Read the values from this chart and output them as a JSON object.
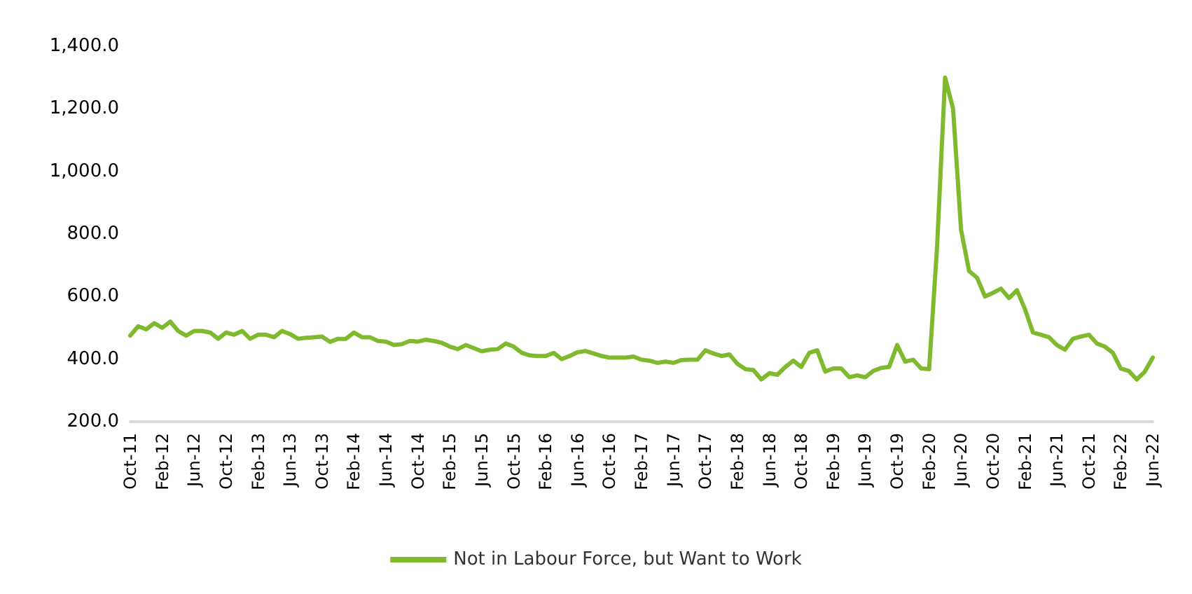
{
  "chart_data": {
    "type": "line",
    "categories": [
      "Oct-11",
      null,
      null,
      null,
      "Feb-12",
      null,
      null,
      null,
      "Jun-12",
      null,
      null,
      null,
      "Oct-12",
      null,
      null,
      null,
      "Feb-13",
      null,
      null,
      null,
      "Jun-13",
      null,
      null,
      null,
      "Oct-13",
      null,
      null,
      null,
      "Feb-14",
      null,
      null,
      null,
      "Jun-14",
      null,
      null,
      null,
      "Oct-14",
      null,
      null,
      null,
      "Feb-15",
      null,
      null,
      null,
      "Jun-15",
      null,
      null,
      null,
      "Oct-15",
      null,
      null,
      null,
      "Feb-16",
      null,
      null,
      null,
      "Jun-16",
      null,
      null,
      null,
      "Oct-16",
      null,
      null,
      null,
      "Feb-17",
      null,
      null,
      null,
      "Jun-17",
      null,
      null,
      null,
      "Oct-17",
      null,
      null,
      null,
      "Feb-18",
      null,
      null,
      null,
      "Jun-18",
      null,
      null,
      null,
      "Oct-18",
      null,
      null,
      null,
      "Feb-19",
      null,
      null,
      null,
      "Jun-19",
      null,
      null,
      null,
      "Oct-19",
      null,
      null,
      null,
      "Feb-20",
      null,
      null,
      null,
      "Jun-20",
      null,
      null,
      null,
      "Oct-20",
      null,
      null,
      null,
      "Feb-21",
      null,
      null,
      null,
      "Jun-21",
      null,
      null,
      null,
      "Oct-21",
      null,
      null,
      null,
      "Feb-22",
      null,
      null,
      null,
      "Jun-22"
    ],
    "series": [
      {
        "name": "Not in Labour Force, but Want to Work",
        "color": "#7fba2e",
        "values": [
          475,
          505,
          495,
          515,
          500,
          520,
          490,
          475,
          490,
          490,
          485,
          465,
          485,
          478,
          490,
          465,
          478,
          478,
          470,
          490,
          480,
          465,
          468,
          470,
          472,
          455,
          465,
          465,
          485,
          470,
          470,
          458,
          456,
          445,
          448,
          458,
          456,
          462,
          458,
          452,
          440,
          432,
          445,
          435,
          425,
          430,
          432,
          450,
          440,
          420,
          412,
          410,
          410,
          420,
          400,
          410,
          422,
          426,
          418,
          410,
          405,
          405,
          405,
          408,
          398,
          395,
          388,
          392,
          388,
          397,
          398,
          398,
          428,
          418,
          410,
          415,
          385,
          368,
          365,
          335,
          355,
          350,
          375,
          395,
          375,
          420,
          428,
          360,
          370,
          370,
          342,
          348,
          342,
          362,
          372,
          375,
          445,
          392,
          398,
          370,
          368,
          760,
          1300,
          1200,
          813,
          682,
          660,
          600,
          612,
          625,
          595,
          620,
          560,
          485,
          478,
          470,
          445,
          430,
          465,
          472,
          478,
          450,
          440,
          420,
          370,
          362,
          335,
          360,
          405
        ]
      }
    ],
    "ylim": [
      200,
      1400
    ],
    "yticks": [
      {
        "value": 200,
        "label": "200.0"
      },
      {
        "value": 400,
        "label": "400.0"
      },
      {
        "value": 600,
        "label": "600.0"
      },
      {
        "value": 800,
        "label": "800.0"
      },
      {
        "value": 1000,
        "label": "1,000.0"
      },
      {
        "value": 1200,
        "label": "1,200.0"
      },
      {
        "value": 1400,
        "label": "1,400.0"
      }
    ],
    "grid": false,
    "legend": "bottom",
    "marker": "none",
    "line_style": "solid"
  }
}
